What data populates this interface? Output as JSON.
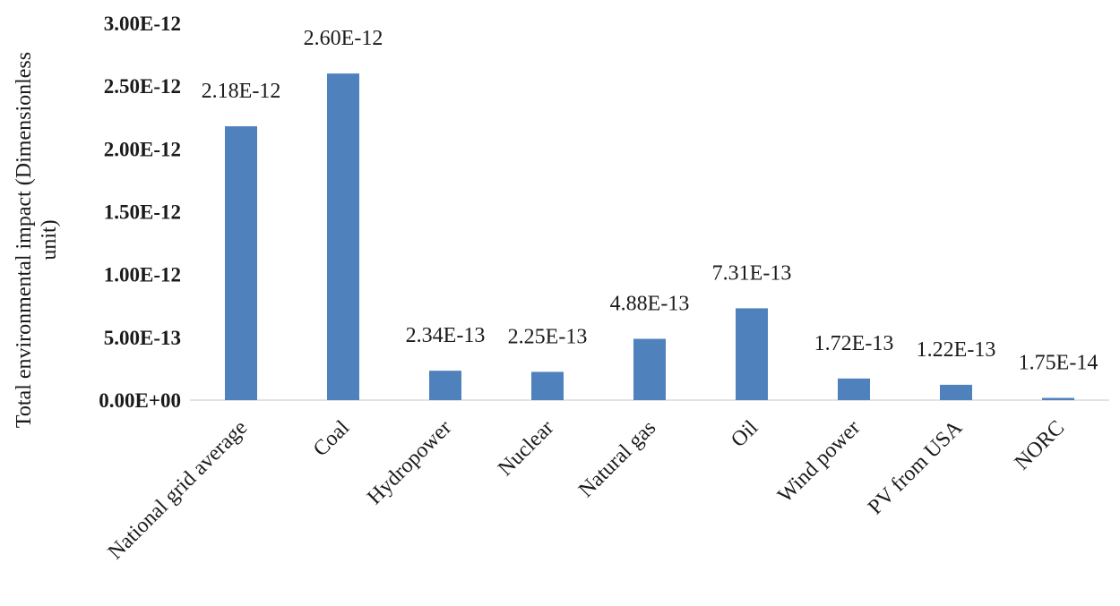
{
  "chart_data": {
    "type": "bar",
    "title": "",
    "xlabel": "",
    "ylabel_lines": [
      "Total environmental impact (Dimensionless",
      "unit)"
    ],
    "categories": [
      "National grid average",
      "Coal",
      "Hydropower",
      "Nuclear",
      "Natural gas",
      "Oil",
      "Wind power",
      "PV from USA",
      "NORC"
    ],
    "values": [
      2.18e-12,
      2.6e-12,
      2.34e-13,
      2.25e-13,
      4.88e-13,
      7.31e-13,
      1.72e-13,
      1.22e-13,
      1.75e-14
    ],
    "data_labels": [
      "2.18E-12",
      "2.60E-12",
      "2.34E-13",
      "2.25E-13",
      "4.88E-13",
      "7.31E-13",
      "1.72E-13",
      "1.22E-13",
      "1.75E-14"
    ],
    "ylim": [
      0,
      3e-12
    ],
    "yticks": [
      0,
      5e-13,
      1e-12,
      1.5e-12,
      2e-12,
      2.5e-12,
      3e-12
    ],
    "ytick_labels": [
      "0.00E+00",
      "5.00E-13",
      "1.00E-12",
      "1.50E-12",
      "2.00E-12",
      "2.50E-12",
      "3.00E-12"
    ],
    "grid": false,
    "legend": "none",
    "bar_color": "#4f81bd"
  }
}
